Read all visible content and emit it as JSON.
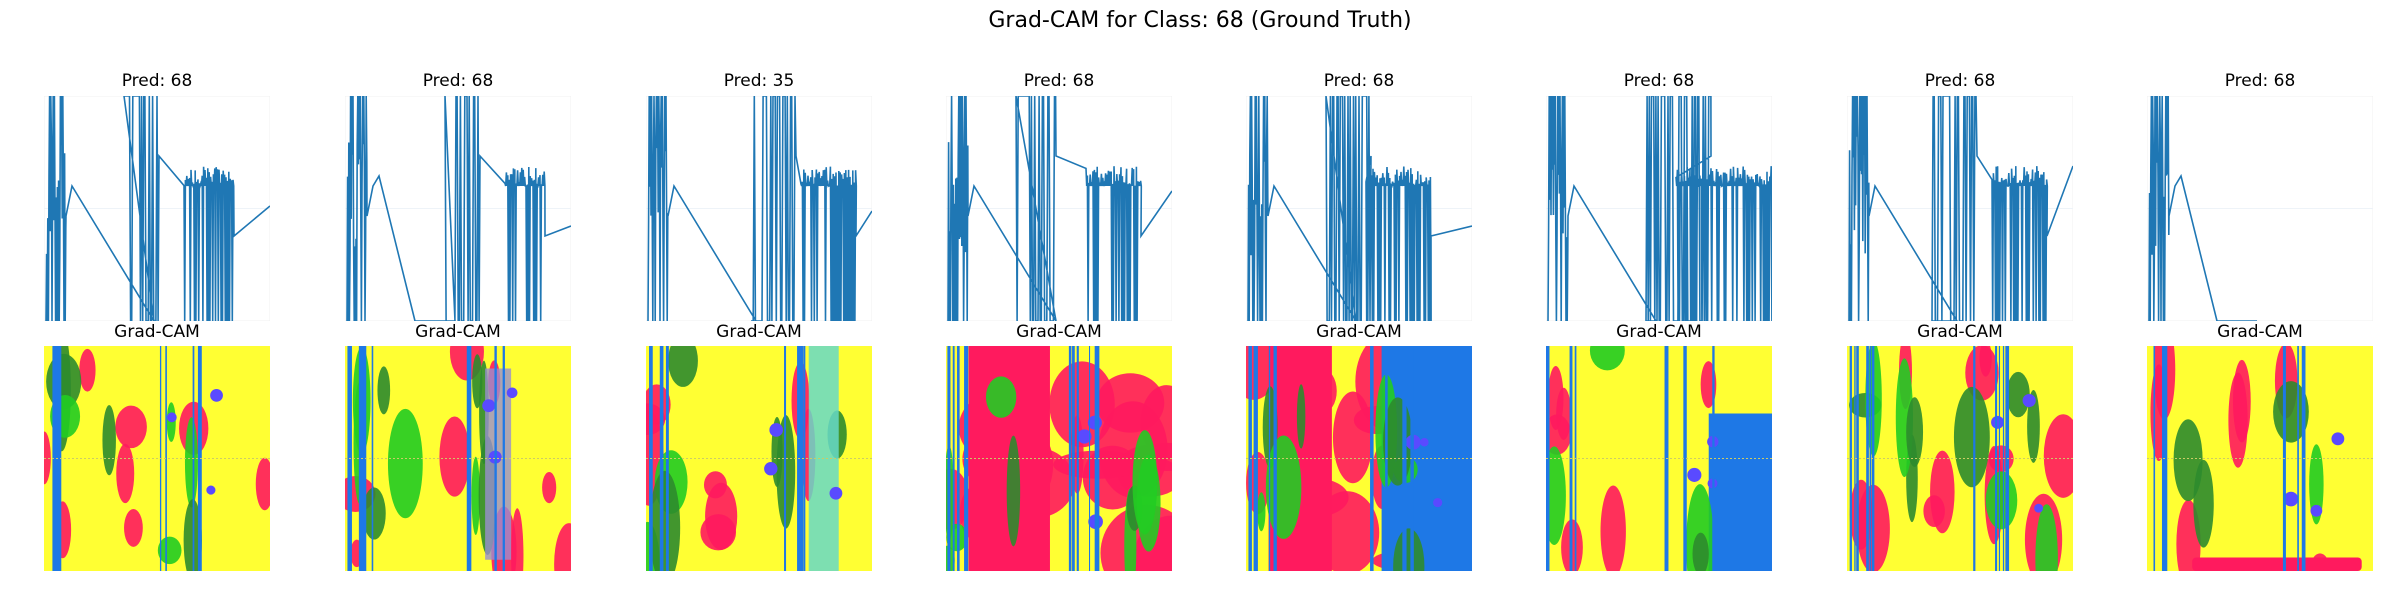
{
  "suptitle": "Grad-CAM for Class: 68 (Ground Truth)",
  "chart_data": {
    "type": "grid",
    "title": "Grad-CAM for Class: 68 (Ground Truth)",
    "rows": [
      {
        "kind": "line",
        "panel_titles": [
          "Pred: 68",
          "Pred: 68",
          "Pred: 35",
          "Pred: 68",
          "Pred: 68",
          "Pred: 68",
          "Pred: 68",
          "Pred: 68"
        ]
      },
      {
        "kind": "heatmap_overlay",
        "panel_titles": [
          "Grad-CAM",
          "Grad-CAM",
          "Grad-CAM",
          "Grad-CAM",
          "Grad-CAM",
          "Grad-CAM",
          "Grad-CAM",
          "Grad-CAM"
        ]
      }
    ],
    "axes_visible": false,
    "colors": {
      "line": "#1f77b4",
      "heat_low": "#ffff33",
      "heat_mid": "#2e8b2e",
      "heat_green": "#22cc22",
      "heat_high": "#ff1a5e",
      "heat_peak": "#5a4aff",
      "overlay_blue": "#1e78e6"
    }
  }
}
